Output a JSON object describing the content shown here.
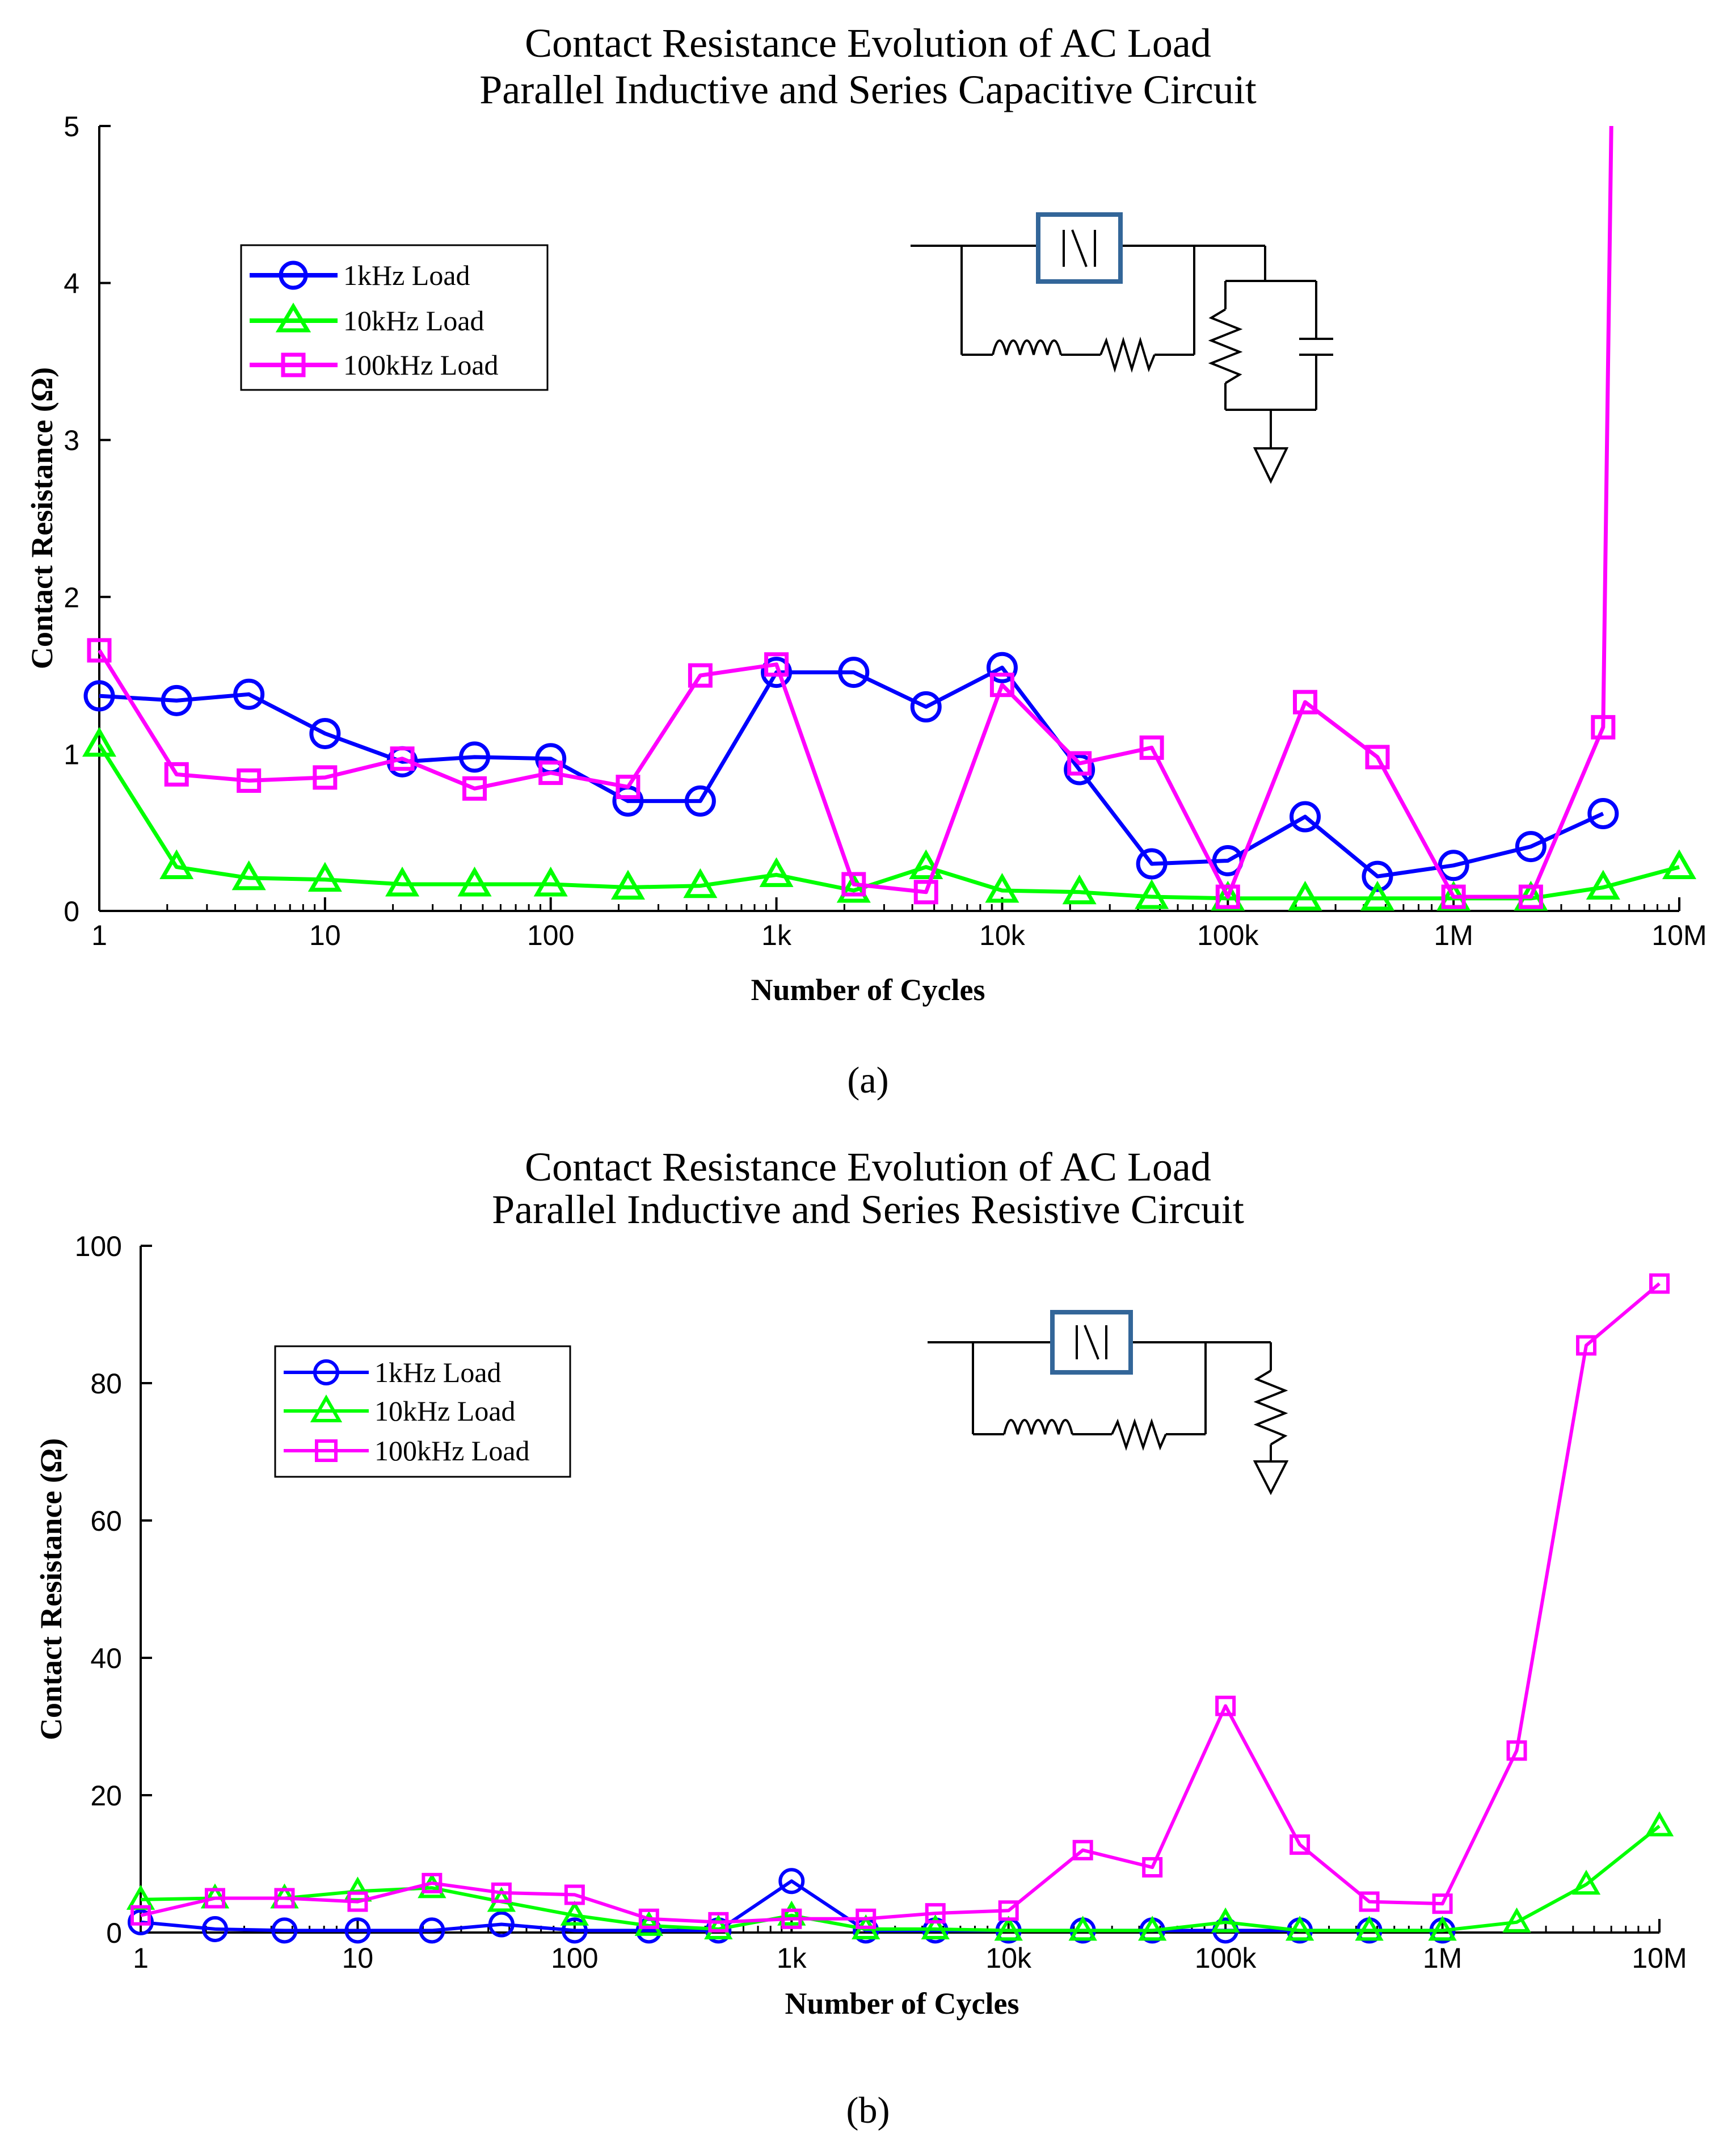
{
  "chart_data": [
    {
      "type": "line",
      "title": [
        "Contact Resistance Evolution of AC Load",
        "Parallel Inductive and Series Capacitive Circuit"
      ],
      "xlabel": "Number of Cycles",
      "ylabel": "Contact Resistance (Ω)",
      "xscale": "log",
      "xlim": [
        1,
        10000000
      ],
      "ylim": [
        0,
        5
      ],
      "yticks": [
        "0",
        "1",
        "2",
        "3",
        "4",
        "5"
      ],
      "xtick_labels": [
        "1",
        "10",
        "100",
        "1k",
        "10k",
        "100k",
        "1M",
        "10M"
      ],
      "legend_position": "top-left",
      "caption": "(a)",
      "series": [
        {
          "name": "1kHz Load",
          "color": "#0000ff",
          "marker": "circle",
          "x": [
            1,
            2.2,
            4.6,
            10,
            22,
            46,
            100,
            220,
            460,
            1000,
            2200,
            4600,
            10000,
            22000,
            46000,
            100000,
            220000,
            460000,
            1000000,
            2200000,
            4600000
          ],
          "y": [
            1.37,
            1.34,
            1.38,
            1.13,
            0.95,
            0.98,
            0.97,
            0.7,
            0.7,
            1.52,
            1.52,
            1.3,
            1.55,
            0.9,
            0.3,
            0.32,
            0.6,
            0.22,
            0.29,
            0.41,
            0.62
          ]
        },
        {
          "name": "10kHz Load",
          "color": "#00ff00",
          "marker": "triangle",
          "x": [
            1,
            2.2,
            4.6,
            10,
            22,
            46,
            100,
            220,
            460,
            1000,
            2200,
            4600,
            10000,
            22000,
            46000,
            100000,
            220000,
            460000,
            1000000,
            2200000,
            4600000,
            10000000
          ],
          "y": [
            1.06,
            0.28,
            0.21,
            0.2,
            0.17,
            0.17,
            0.17,
            0.15,
            0.16,
            0.23,
            0.13,
            0.28,
            0.13,
            0.12,
            0.09,
            0.08,
            0.08,
            0.08,
            0.08,
            0.08,
            0.15,
            0.28
          ]
        },
        {
          "name": "100kHz Load",
          "color": "#ff00ff",
          "marker": "square",
          "x": [
            1,
            2.2,
            4.6,
            10,
            22,
            46,
            100,
            220,
            460,
            1000,
            2200,
            4600,
            10000,
            22000,
            46000,
            100000,
            220000,
            460000,
            1000000,
            2200000,
            4600000,
            5000000
          ],
          "y": [
            1.66,
            0.87,
            0.83,
            0.85,
            0.97,
            0.78,
            0.88,
            0.79,
            1.5,
            1.57,
            0.17,
            0.12,
            1.44,
            0.94,
            1.04,
            0.09,
            1.33,
            0.98,
            0.09,
            0.09,
            1.17,
            5.0
          ]
        }
      ]
    },
    {
      "type": "line",
      "title": [
        "Contact Resistance Evolution of AC Load",
        "Parallel Inductive and Series Resistive Circuit"
      ],
      "xlabel": "Number of Cycles",
      "ylabel": "Contact Resistance (Ω)",
      "xscale": "log",
      "xlim": [
        1,
        10000000
      ],
      "ylim": [
        0,
        100
      ],
      "yticks": [
        "0",
        "20",
        "40",
        "60",
        "80",
        "100"
      ],
      "xtick_labels": [
        "1",
        "10",
        "100",
        "1k",
        "10k",
        "100k",
        "1M",
        "10M"
      ],
      "legend_position": "top-left",
      "caption": "(b)",
      "series": [
        {
          "name": "1kHz Load",
          "color": "#0000ff",
          "marker": "circle",
          "x": [
            1,
            2.2,
            4.6,
            10,
            22,
            46,
            100,
            220,
            460,
            1000,
            2200,
            4600,
            10000,
            22000,
            46000,
            100000,
            220000,
            460000,
            1000000
          ],
          "y": [
            1.5,
            0.5,
            0.3,
            0.3,
            0.3,
            1.2,
            0.3,
            0.3,
            0.3,
            7.5,
            0.3,
            0.3,
            0.3,
            0.3,
            0.3,
            0.3,
            0.3,
            0.3,
            0.3
          ]
        },
        {
          "name": "10kHz Load",
          "color": "#00ff00",
          "marker": "triangle",
          "x": [
            1,
            2.2,
            4.6,
            10,
            22,
            46,
            100,
            220,
            460,
            1000,
            2200,
            4600,
            10000,
            22000,
            46000,
            100000,
            220000,
            460000,
            1000000,
            2200000,
            4600000,
            10000000
          ],
          "y": [
            4.8,
            5.0,
            5.0,
            6.0,
            6.5,
            4.5,
            2.5,
            1.0,
            0.5,
            2.5,
            0.5,
            0.5,
            0.3,
            0.3,
            0.3,
            1.5,
            0.3,
            0.3,
            0.3,
            1.5,
            7.0,
            15.5
          ]
        },
        {
          "name": "100kHz Load",
          "color": "#ff00ff",
          "marker": "square",
          "x": [
            1,
            2.2,
            4.6,
            10,
            22,
            46,
            100,
            220,
            460,
            1000,
            2200,
            4600,
            10000,
            22000,
            46000,
            100000,
            220000,
            460000,
            1000000,
            2200000,
            4600000,
            10000000
          ],
          "y": [
            2.5,
            5.0,
            5.0,
            4.5,
            7.2,
            5.8,
            5.5,
            2.0,
            1.5,
            2.0,
            2.0,
            2.8,
            3.2,
            12.0,
            9.5,
            33.0,
            12.8,
            4.5,
            4.2,
            26.5,
            85.5,
            94.5
          ]
        }
      ]
    }
  ]
}
